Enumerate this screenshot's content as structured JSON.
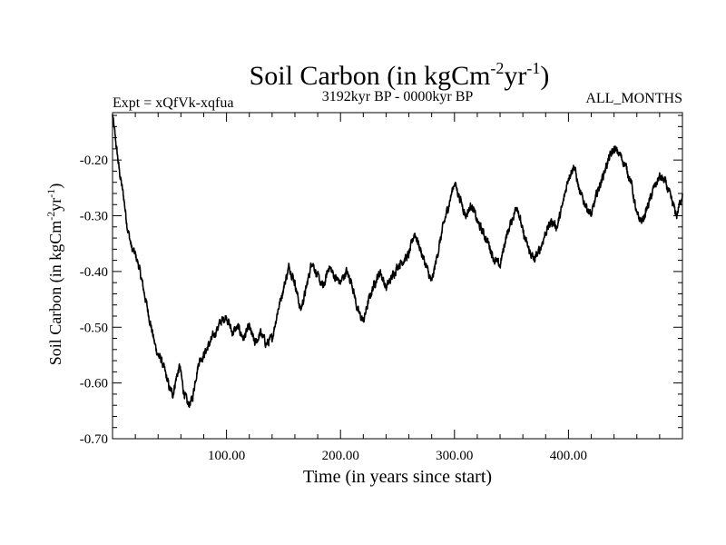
{
  "chart_data": {
    "type": "line",
    "title": {
      "main": "Soil Carbon (in kgCm",
      "sup1": "-2",
      "mid": "yr",
      "sup2": "-1",
      "close": ")"
    },
    "subtitle_left": "Expt = xQfVk-xqfua",
    "subtitle_center": "3192kyr BP - 0000kyr BP",
    "subtitle_right": "ALL_MONTHS",
    "xlabel": "Time (in years since start)",
    "ylabel": {
      "main": "Soil Carbon (in kgCm",
      "sup1": "-2",
      "mid": "yr",
      "sup2": "-1",
      "close": ")"
    },
    "xlim": [
      0,
      500
    ],
    "ylim": [
      -0.7,
      -0.115
    ],
    "x_major_ticks": [
      100,
      200,
      300,
      400
    ],
    "x_tick_labels": [
      "100.00",
      "200.00",
      "300.00",
      "400.00"
    ],
    "y_major_ticks": [
      -0.7,
      -0.6,
      -0.5,
      -0.4,
      -0.3,
      -0.2
    ],
    "y_tick_labels": [
      "-0.70",
      "-0.60",
      "-0.50",
      "-0.40",
      "-0.30",
      "-0.20"
    ],
    "series": [
      {
        "name": "Soil Carbon",
        "color": "#000000",
        "points": [
          [
            0,
            -0.12
          ],
          [
            3,
            -0.17
          ],
          [
            6,
            -0.22
          ],
          [
            10,
            -0.27
          ],
          [
            13,
            -0.32
          ],
          [
            17,
            -0.36
          ],
          [
            20,
            -0.37
          ],
          [
            23,
            -0.39
          ],
          [
            26,
            -0.42
          ],
          [
            30,
            -0.46
          ],
          [
            34,
            -0.5
          ],
          [
            37,
            -0.53
          ],
          [
            40,
            -0.55
          ],
          [
            43,
            -0.56
          ],
          [
            46,
            -0.58
          ],
          [
            50,
            -0.61
          ],
          [
            53,
            -0.62
          ],
          [
            56,
            -0.59
          ],
          [
            59,
            -0.57
          ],
          [
            62,
            -0.61
          ],
          [
            66,
            -0.64
          ],
          [
            70,
            -0.63
          ],
          [
            73,
            -0.59
          ],
          [
            76,
            -0.56
          ],
          [
            80,
            -0.55
          ],
          [
            85,
            -0.53
          ],
          [
            90,
            -0.51
          ],
          [
            95,
            -0.49
          ],
          [
            100,
            -0.48
          ],
          [
            105,
            -0.51
          ],
          [
            110,
            -0.5
          ],
          [
            115,
            -0.52
          ],
          [
            120,
            -0.5
          ],
          [
            125,
            -0.53
          ],
          [
            130,
            -0.51
          ],
          [
            135,
            -0.53
          ],
          [
            140,
            -0.52
          ],
          [
            145,
            -0.47
          ],
          [
            150,
            -0.43
          ],
          [
            155,
            -0.39
          ],
          [
            160,
            -0.42
          ],
          [
            165,
            -0.47
          ],
          [
            170,
            -0.43
          ],
          [
            175,
            -0.38
          ],
          [
            180,
            -0.41
          ],
          [
            185,
            -0.43
          ],
          [
            190,
            -0.39
          ],
          [
            195,
            -0.41
          ],
          [
            200,
            -0.42
          ],
          [
            205,
            -0.4
          ],
          [
            210,
            -0.42
          ],
          [
            215,
            -0.47
          ],
          [
            220,
            -0.49
          ],
          [
            225,
            -0.45
          ],
          [
            230,
            -0.42
          ],
          [
            235,
            -0.4
          ],
          [
            240,
            -0.43
          ],
          [
            245,
            -0.41
          ],
          [
            250,
            -0.39
          ],
          [
            255,
            -0.38
          ],
          [
            260,
            -0.37
          ],
          [
            265,
            -0.33
          ],
          [
            270,
            -0.36
          ],
          [
            275,
            -0.39
          ],
          [
            280,
            -0.42
          ],
          [
            285,
            -0.37
          ],
          [
            290,
            -0.32
          ],
          [
            295,
            -0.28
          ],
          [
            300,
            -0.24
          ],
          [
            305,
            -0.27
          ],
          [
            310,
            -0.3
          ],
          [
            315,
            -0.28
          ],
          [
            320,
            -0.31
          ],
          [
            325,
            -0.33
          ],
          [
            330,
            -0.35
          ],
          [
            335,
            -0.38
          ],
          [
            340,
            -0.39
          ],
          [
            345,
            -0.34
          ],
          [
            350,
            -0.31
          ],
          [
            355,
            -0.28
          ],
          [
            360,
            -0.33
          ],
          [
            365,
            -0.36
          ],
          [
            370,
            -0.38
          ],
          [
            375,
            -0.36
          ],
          [
            380,
            -0.33
          ],
          [
            385,
            -0.31
          ],
          [
            390,
            -0.32
          ],
          [
            395,
            -0.28
          ],
          [
            400,
            -0.23
          ],
          [
            405,
            -0.21
          ],
          [
            410,
            -0.26
          ],
          [
            415,
            -0.28
          ],
          [
            420,
            -0.3
          ],
          [
            425,
            -0.26
          ],
          [
            430,
            -0.23
          ],
          [
            435,
            -0.2
          ],
          [
            440,
            -0.18
          ],
          [
            445,
            -0.19
          ],
          [
            450,
            -0.21
          ],
          [
            455,
            -0.24
          ],
          [
            460,
            -0.3
          ],
          [
            465,
            -0.31
          ],
          [
            470,
            -0.28
          ],
          [
            475,
            -0.25
          ],
          [
            480,
            -0.23
          ],
          [
            485,
            -0.24
          ],
          [
            490,
            -0.27
          ],
          [
            495,
            -0.3
          ],
          [
            500,
            -0.26
          ]
        ]
      }
    ]
  }
}
